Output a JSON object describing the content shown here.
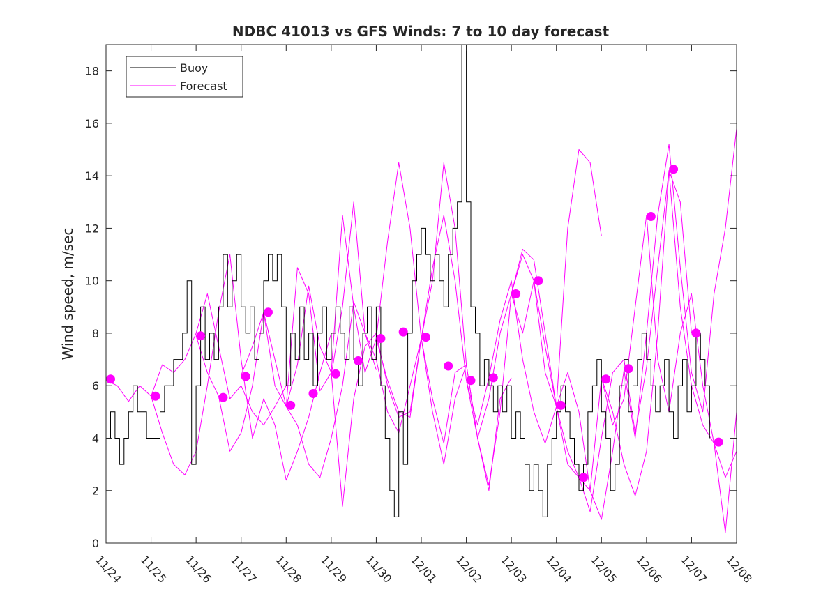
{
  "chart_data": {
    "type": "line",
    "title": "NDBC 41013 vs GFS Winds: 7 to 10 day forecast",
    "xlabel": "",
    "ylabel": "Wind speed, m/sec",
    "xlim": [
      0,
      14
    ],
    "ylim": [
      0,
      19
    ],
    "yticks": [
      0,
      2,
      4,
      6,
      8,
      10,
      12,
      14,
      16,
      18
    ],
    "xtick_labels": [
      "11/24",
      "11/25",
      "11/26",
      "11/27",
      "11/28",
      "11/29",
      "11/30",
      "12/01",
      "12/02",
      "12/03",
      "12/04",
      "12/05",
      "12/06",
      "12/07",
      "12/08"
    ],
    "legend": {
      "location": "top-left",
      "entries": [
        {
          "label": "Buoy",
          "color": "#000000"
        },
        {
          "label": "Forecast",
          "color": "#ff00ff"
        }
      ]
    },
    "colors": {
      "buoy": "#000000",
      "forecast": "#ff00ff",
      "axis": "#262626"
    },
    "buoy": {
      "name": "Buoy",
      "x": [
        0,
        0.1,
        0.2,
        0.3,
        0.4,
        0.5,
        0.6,
        0.7,
        0.8,
        0.9,
        1.0,
        1.1,
        1.2,
        1.3,
        1.4,
        1.5,
        1.6,
        1.7,
        1.8,
        1.9,
        2.0,
        2.1,
        2.2,
        2.3,
        2.4,
        2.5,
        2.6,
        2.7,
        2.8,
        2.9,
        3.0,
        3.1,
        3.2,
        3.3,
        3.4,
        3.5,
        3.6,
        3.7,
        3.8,
        3.9,
        4.0,
        4.1,
        4.2,
        4.3,
        4.4,
        4.5,
        4.6,
        4.7,
        4.8,
        4.9,
        5.0,
        5.1,
        5.2,
        5.3,
        5.4,
        5.5,
        5.6,
        5.7,
        5.8,
        5.9,
        6.0,
        6.1,
        6.2,
        6.3,
        6.4,
        6.5,
        6.6,
        6.7,
        6.8,
        6.9,
        7.0,
        7.1,
        7.2,
        7.3,
        7.4,
        7.5,
        7.6,
        7.7,
        7.8,
        7.9,
        8.0,
        8.1,
        8.2,
        8.3,
        8.4,
        8.5,
        8.6,
        8.7,
        8.8,
        8.9,
        9.0,
        9.1,
        9.2,
        9.3,
        9.4,
        9.5,
        9.6,
        9.7,
        9.8,
        9.9,
        10.0,
        10.1,
        10.2,
        10.3,
        10.4,
        10.5,
        10.6,
        10.7,
        10.8,
        10.9,
        11.0,
        11.1,
        11.2,
        11.3,
        11.4,
        11.5,
        11.6,
        11.7,
        11.8,
        11.9,
        12.0,
        12.1,
        12.2,
        12.3,
        12.4,
        12.5,
        12.6,
        12.7,
        12.8,
        12.9,
        13.0,
        13.1,
        13.2,
        13.3,
        13.4
      ],
      "values": [
        4,
        5,
        4,
        3,
        4,
        5,
        6,
        5,
        5,
        4,
        4,
        4,
        5,
        6,
        6,
        7,
        7,
        8,
        10,
        3,
        6,
        9,
        7,
        8,
        7,
        9,
        11,
        9,
        10,
        11,
        9,
        8,
        9,
        7,
        8,
        10,
        11,
        10,
        11,
        9,
        6,
        8,
        7,
        9,
        7,
        8,
        6,
        8,
        9,
        7,
        8,
        9,
        8,
        7,
        9,
        7,
        6,
        8,
        9,
        7,
        9,
        6,
        4,
        2,
        1,
        5,
        3,
        8,
        10,
        11,
        12,
        11,
        10,
        11,
        10,
        9,
        11,
        12,
        13,
        19,
        13,
        9,
        8,
        6,
        7,
        6,
        5,
        6,
        5,
        6,
        4,
        5,
        4,
        3,
        2,
        3,
        2,
        1,
        3,
        4,
        5,
        6,
        5,
        4,
        3,
        2,
        3,
        5,
        6,
        7,
        5,
        4,
        2,
        3,
        6,
        7,
        5,
        6,
        7,
        8,
        7,
        6,
        5,
        6,
        7,
        5,
        4,
        6,
        7,
        5,
        6,
        8,
        7,
        6,
        4
      ]
    },
    "forecast_series": [
      {
        "name": "Forecast",
        "x": [
          0,
          0.25,
          0.5,
          0.75,
          1.0,
          1.25,
          1.5,
          1.75,
          2.0,
          2.25,
          2.5,
          2.75,
          3.0,
          3.25,
          3.5,
          3.75,
          4.0
        ],
        "values": [
          6.2,
          6.0,
          5.4,
          6.0,
          5.6,
          6.8,
          6.5,
          7.0,
          8.0,
          9.5,
          7.5,
          5.5,
          6.0,
          5.0,
          4.5,
          5.2,
          6.0
        ]
      },
      {
        "name": "Forecast",
        "x": [
          1.0,
          1.25,
          1.5,
          1.75,
          2.0,
          2.25,
          2.5,
          2.75,
          3.0,
          3.25,
          3.5,
          3.75,
          4.0,
          4.25,
          4.5,
          4.75,
          5.0
        ],
        "values": [
          5.6,
          4.2,
          3.0,
          2.6,
          3.5,
          6.0,
          8.8,
          11.0,
          7.0,
          4.0,
          5.5,
          4.5,
          2.4,
          3.5,
          4.8,
          6.5,
          8.0
        ]
      },
      {
        "name": "Forecast",
        "x": [
          2.0,
          2.25,
          2.5,
          2.75,
          3.0,
          3.25,
          3.5,
          3.75,
          4.0,
          4.25,
          4.5,
          4.75,
          5.0,
          5.25,
          5.5,
          5.75,
          6.0
        ],
        "values": [
          7.9,
          6.5,
          5.6,
          3.5,
          4.2,
          6.0,
          8.8,
          7.0,
          5.2,
          4.5,
          3.0,
          2.5,
          4.0,
          6.0,
          9.2,
          8.0,
          6.6
        ]
      },
      {
        "name": "Forecast",
        "x": [
          3.0,
          3.25,
          3.5,
          3.75,
          4.0,
          4.25,
          4.5,
          4.75,
          5.0,
          5.25,
          5.5,
          5.75,
          6.0,
          6.25,
          6.5,
          6.75,
          7.0
        ],
        "values": [
          6.4,
          7.5,
          8.8,
          6.0,
          5.2,
          10.5,
          9.5,
          5.8,
          6.5,
          12.5,
          9.0,
          6.5,
          7.8,
          11.5,
          14.5,
          12.0,
          7.8
        ]
      },
      {
        "name": "Forecast",
        "x": [
          4.0,
          4.25,
          4.5,
          4.75,
          5.0,
          5.25,
          5.5,
          5.75,
          6.0,
          6.25,
          6.5,
          6.75,
          7.0,
          7.25,
          7.5,
          7.75,
          8.0
        ],
        "values": [
          5.2,
          6.8,
          9.8,
          7.5,
          6.5,
          1.4,
          5.5,
          7.5,
          8.0,
          6.0,
          4.8,
          5.0,
          7.8,
          5.5,
          3.8,
          6.5,
          6.8
        ]
      },
      {
        "name": "Forecast",
        "x": [
          5.0,
          5.25,
          5.5,
          5.75,
          6.0,
          6.25,
          6.5,
          6.75,
          7.0,
          7.25,
          7.5,
          7.75,
          8.0,
          8.25,
          8.5,
          8.75,
          9.0
        ],
        "values": [
          6.4,
          9.0,
          13.0,
          8.0,
          7.0,
          5.0,
          4.2,
          6.0,
          7.8,
          10.5,
          12.5,
          10.0,
          6.2,
          4.0,
          2.0,
          5.5,
          6.3
        ]
      },
      {
        "name": "Forecast",
        "x": [
          6.0,
          6.25,
          6.5,
          6.75,
          7.0,
          7.25,
          7.5,
          7.75,
          8.0,
          8.25,
          8.5,
          8.75,
          9.0,
          9.25,
          9.5,
          9.75,
          10.0
        ],
        "values": [
          7.8,
          6.2,
          5.0,
          4.8,
          7.8,
          10.0,
          14.5,
          12.0,
          6.8,
          4.0,
          5.5,
          8.0,
          9.5,
          11.2,
          10.8,
          8.0,
          5.2
        ]
      },
      {
        "name": "Forecast",
        "x": [
          7.0,
          7.25,
          7.5,
          7.75,
          8.0,
          8.25,
          8.5,
          8.75,
          9.0,
          9.25,
          9.5,
          9.75,
          10.0,
          10.25,
          10.5,
          10.75,
          11.0
        ],
        "values": [
          7.8,
          5.0,
          3.0,
          5.5,
          6.8,
          4.0,
          2.2,
          5.0,
          9.5,
          11.0,
          10.0,
          6.5,
          5.2,
          12.0,
          15.0,
          14.5,
          11.7
        ]
      },
      {
        "name": "Forecast",
        "x": [
          8.0,
          8.25,
          8.5,
          8.75,
          9.0,
          9.25,
          9.5,
          9.75,
          10.0,
          10.25,
          10.5,
          10.75,
          11.0,
          11.25,
          11.5,
          11.75,
          12.0
        ],
        "values": [
          6.2,
          4.5,
          6.3,
          8.5,
          10.0,
          7.0,
          5.0,
          3.8,
          5.2,
          6.5,
          5.0,
          2.0,
          6.3,
          4.5,
          5.5,
          9.0,
          12.5
        ]
      },
      {
        "name": "Forecast",
        "x": [
          9.0,
          9.25,
          9.5,
          9.75,
          10.0,
          10.25,
          10.5,
          10.75,
          11.0,
          11.25,
          11.5,
          11.75,
          12.0,
          12.25,
          12.5,
          12.75,
          13.0
        ],
        "values": [
          9.5,
          8.0,
          10.0,
          7.5,
          5.2,
          3.0,
          2.5,
          1.2,
          4.0,
          6.5,
          7.0,
          4.2,
          6.7,
          10.5,
          14.2,
          13.0,
          8.0
        ]
      },
      {
        "name": "Forecast",
        "x": [
          10.0,
          10.25,
          10.5,
          10.75,
          11.0,
          11.25,
          11.5,
          11.75,
          12.0,
          12.25,
          12.5,
          12.75,
          13.0,
          13.25,
          13.5,
          13.75,
          14.0
        ],
        "values": [
          5.2,
          3.5,
          2.5,
          2.0,
          0.9,
          3.5,
          6.6,
          4.0,
          8.0,
          12.5,
          15.2,
          10.5,
          6.5,
          5.0,
          9.5,
          12.0,
          15.8
        ]
      },
      {
        "name": "Forecast",
        "x": [
          11.0,
          11.25,
          11.5,
          11.75,
          12.0,
          12.25,
          12.5,
          12.75,
          13.0,
          13.25,
          13.5,
          13.75,
          14.0
        ],
        "values": [
          6.3,
          5.0,
          3.0,
          1.8,
          3.5,
          8.0,
          14.2,
          9.0,
          6.0,
          4.5,
          3.8,
          2.5,
          3.5
        ]
      },
      {
        "name": "Forecast",
        "x": [
          12.0,
          12.25,
          12.5,
          12.75,
          13.0,
          13.25,
          13.5,
          13.75,
          14.0
        ],
        "values": [
          12.5,
          7.0,
          5.0,
          8.0,
          9.5,
          6.0,
          3.8,
          0.4,
          5.0
        ]
      }
    ],
    "markers": {
      "name": "Forecast",
      "x": [
        0.1,
        1.1,
        2.1,
        2.6,
        3.1,
        3.6,
        4.1,
        4.6,
        5.1,
        5.6,
        6.1,
        6.6,
        7.1,
        7.6,
        8.1,
        8.6,
        9.1,
        9.6,
        10.1,
        10.6,
        11.1,
        11.6,
        12.1,
        12.6,
        13.1,
        13.6
      ],
      "values": [
        6.25,
        5.6,
        7.9,
        5.55,
        6.35,
        8.8,
        5.25,
        5.7,
        6.45,
        6.95,
        7.8,
        8.05,
        7.85,
        6.75,
        6.2,
        6.3,
        9.5,
        10.0,
        5.25,
        2.5,
        6.25,
        6.65,
        12.45,
        14.25,
        8.0,
        3.85
      ]
    }
  }
}
